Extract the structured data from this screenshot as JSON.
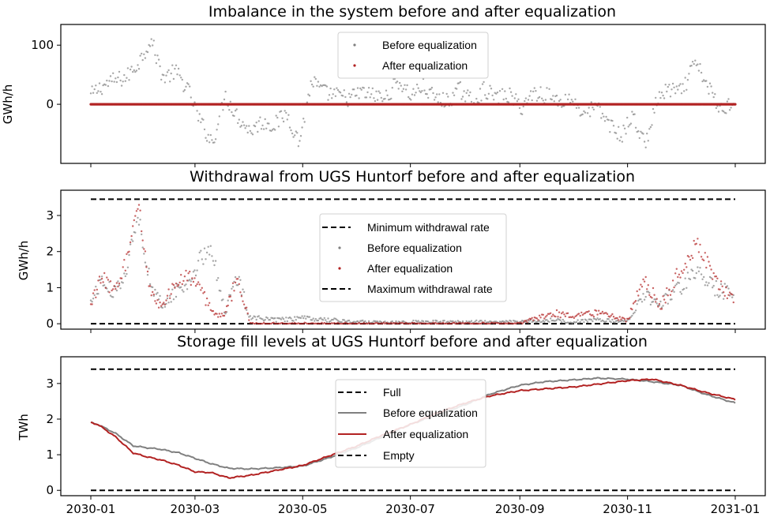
{
  "colors": {
    "before": "#808080",
    "after": "#b22222",
    "limit": "#000000"
  },
  "x_ticks": [
    "2030-01",
    "2030-03",
    "2030-05",
    "2030-07",
    "2030-09",
    "2030-11",
    "2031-01"
  ],
  "chart_data": [
    {
      "type": "scatter",
      "title": "Imbalance in the system before and after equalization",
      "ylabel": "GWh/h",
      "xlim": [
        "2030-01-01",
        "2031-01-01"
      ],
      "ylim": [
        -100,
        135
      ],
      "yticks": [
        {
          "value": 100,
          "label": "100"
        },
        {
          "value": 0,
          "label": "0"
        }
      ],
      "legend": {
        "position": "top-center",
        "entries": [
          "Before equalization",
          "After equalization"
        ]
      },
      "series": [
        {
          "name": "Before equalization",
          "style": "points",
          "color": "#808080",
          "x": [
            "2030-01-01",
            "2030-01-07",
            "2030-01-14",
            "2030-01-21",
            "2030-01-28",
            "2030-02-04",
            "2030-02-11",
            "2030-02-18",
            "2030-02-25",
            "2030-03-04",
            "2030-03-11",
            "2030-03-18",
            "2030-03-25",
            "2030-04-01",
            "2030-04-08",
            "2030-04-15",
            "2030-04-22",
            "2030-04-29",
            "2030-05-06",
            "2030-05-13",
            "2030-05-20",
            "2030-05-27",
            "2030-06-03",
            "2030-06-10",
            "2030-06-17",
            "2030-06-24",
            "2030-07-01",
            "2030-07-08",
            "2030-07-15",
            "2030-07-22",
            "2030-07-29",
            "2030-08-05",
            "2030-08-12",
            "2030-08-19",
            "2030-08-26",
            "2030-09-02",
            "2030-09-09",
            "2030-09-16",
            "2030-09-23",
            "2030-09-30",
            "2030-10-07",
            "2030-10-14",
            "2030-10-21",
            "2030-10-28",
            "2030-11-04",
            "2030-11-11",
            "2030-11-18",
            "2030-11-25",
            "2030-12-02",
            "2030-12-09",
            "2030-12-16",
            "2030-12-23",
            "2030-12-31"
          ],
          "y": [
            15,
            30,
            40,
            45,
            70,
            110,
            45,
            55,
            25,
            -30,
            -65,
            15,
            -20,
            -45,
            -30,
            -35,
            -15,
            -65,
            40,
            20,
            15,
            10,
            20,
            15,
            10,
            40,
            15,
            30,
            10,
            5,
            25,
            5,
            25,
            10,
            15,
            -5,
            20,
            15,
            5,
            10,
            -15,
            -5,
            -30,
            -55,
            -20,
            -70,
            10,
            25,
            20,
            70,
            35,
            -10,
            5
          ]
        },
        {
          "name": "After equalization",
          "style": "points",
          "color": "#b22222",
          "x": [
            "2030-01-01",
            "2031-01-01"
          ],
          "y": [
            0,
            0
          ]
        }
      ]
    },
    {
      "type": "scatter",
      "title": "Withdrawal from UGS Huntorf before and after equalization",
      "ylabel": "GWh/h",
      "xlim": [
        "2030-01-01",
        "2031-01-01"
      ],
      "ylim": [
        -0.15,
        3.7
      ],
      "yticks": [
        {
          "value": 0,
          "label": "0"
        },
        {
          "value": 1,
          "label": "1"
        },
        {
          "value": 2,
          "label": "2"
        },
        {
          "value": 3,
          "label": "3"
        }
      ],
      "legend": {
        "position": "center",
        "entries": [
          "Minimum withdrawal rate",
          "Before equalization",
          "After equalization",
          "Maximum withdrawal rate"
        ]
      },
      "series": [
        {
          "name": "Minimum withdrawal rate",
          "style": "dashed-line",
          "color": "#000000",
          "x": [
            "2030-01-01",
            "2031-01-01"
          ],
          "y": [
            0,
            0
          ]
        },
        {
          "name": "Before equalization",
          "style": "points",
          "color": "#808080",
          "x": [
            "2030-01-01",
            "2030-01-07",
            "2030-01-14",
            "2030-01-21",
            "2030-01-28",
            "2030-02-04",
            "2030-02-11",
            "2030-02-18",
            "2030-02-25",
            "2030-03-04",
            "2030-03-11",
            "2030-03-18",
            "2030-03-25",
            "2030-04-01",
            "2030-04-15",
            "2030-05-01",
            "2030-06-01",
            "2030-07-01",
            "2030-08-01",
            "2030-09-01",
            "2030-09-20",
            "2030-10-01",
            "2030-10-15",
            "2030-11-01",
            "2030-11-10",
            "2030-11-20",
            "2030-12-01",
            "2030-12-10",
            "2030-12-20",
            "2030-12-31"
          ],
          "y": [
            0.6,
            1.2,
            0.8,
            1.5,
            3.0,
            1.0,
            0.5,
            0.9,
            1.1,
            1.8,
            2.0,
            0.3,
            1.3,
            0.2,
            0.1,
            0.15,
            0.05,
            0.05,
            0.05,
            0.05,
            0.1,
            0.05,
            0.1,
            0.05,
            0.8,
            0.6,
            1.0,
            1.5,
            1.0,
            0.8
          ]
        },
        {
          "name": "After equalization",
          "style": "points",
          "color": "#b22222",
          "x": [
            "2030-01-01",
            "2030-01-07",
            "2030-01-14",
            "2030-01-21",
            "2030-01-28",
            "2030-02-04",
            "2030-02-11",
            "2030-02-18",
            "2030-02-25",
            "2030-03-04",
            "2030-03-11",
            "2030-03-18",
            "2030-03-25",
            "2030-04-01",
            "2030-04-15",
            "2030-05-01",
            "2030-06-01",
            "2030-07-01",
            "2030-08-01",
            "2030-09-01",
            "2030-09-20",
            "2030-10-01",
            "2030-10-15",
            "2030-11-01",
            "2030-11-10",
            "2030-11-20",
            "2030-12-01",
            "2030-12-10",
            "2030-12-20",
            "2030-12-31"
          ],
          "y": [
            0.5,
            1.3,
            0.9,
            1.7,
            3.3,
            0.8,
            0.5,
            1.1,
            1.3,
            1.0,
            0.3,
            0.2,
            1.4,
            0.0,
            0.0,
            0.0,
            0.0,
            0.0,
            0.0,
            0.0,
            0.3,
            0.2,
            0.3,
            0.1,
            1.2,
            0.5,
            1.5,
            2.2,
            1.3,
            0.6
          ]
        },
        {
          "name": "Maximum withdrawal rate",
          "style": "dashed-line",
          "color": "#000000",
          "x": [
            "2030-01-01",
            "2031-01-01"
          ],
          "y": [
            3.45,
            3.45
          ]
        }
      ]
    },
    {
      "type": "line",
      "title": "Storage fill levels at UGS Huntorf before and after equalization",
      "ylabel": "TWh",
      "xlim": [
        "2030-01-01",
        "2031-01-01"
      ],
      "ylim": [
        -0.15,
        3.75
      ],
      "yticks": [
        {
          "value": 0,
          "label": "0"
        },
        {
          "value": 1,
          "label": "1"
        },
        {
          "value": 2,
          "label": "2"
        },
        {
          "value": 3,
          "label": "3"
        }
      ],
      "legend": {
        "position": "center",
        "entries": [
          "Full",
          "Before equalization",
          "After equalization",
          "Empty"
        ]
      },
      "series": [
        {
          "name": "Full",
          "style": "dashed-line",
          "color": "#000000",
          "x": [
            "2030-01-01",
            "2031-01-01"
          ],
          "y": [
            3.4,
            3.4
          ]
        },
        {
          "name": "Before equalization",
          "style": "solid-line",
          "color": "#808080",
          "x": [
            "2030-01-01",
            "2030-01-05",
            "2030-01-15",
            "2030-01-25",
            "2030-02-01",
            "2030-02-10",
            "2030-02-20",
            "2030-03-01",
            "2030-03-10",
            "2030-03-20",
            "2030-04-01",
            "2030-04-15",
            "2030-05-01",
            "2030-05-15",
            "2030-06-01",
            "2030-06-15",
            "2030-07-01",
            "2030-07-15",
            "2030-08-01",
            "2030-08-15",
            "2030-09-01",
            "2030-09-15",
            "2030-10-01",
            "2030-10-15",
            "2030-11-01",
            "2030-11-15",
            "2030-12-01",
            "2030-12-15",
            "2031-01-01"
          ],
          "y": [
            1.9,
            1.85,
            1.6,
            1.25,
            1.2,
            1.15,
            1.05,
            0.9,
            0.75,
            0.62,
            0.6,
            0.63,
            0.68,
            0.9,
            1.2,
            1.5,
            1.85,
            2.1,
            2.4,
            2.7,
            2.95,
            3.05,
            3.1,
            3.15,
            3.12,
            3.05,
            2.95,
            2.7,
            2.45
          ]
        },
        {
          "name": "After equalization",
          "style": "solid-line",
          "color": "#b22222",
          "x": [
            "2030-01-01",
            "2030-01-05",
            "2030-01-15",
            "2030-01-25",
            "2030-02-01",
            "2030-02-10",
            "2030-02-20",
            "2030-03-01",
            "2030-03-10",
            "2030-03-20",
            "2030-04-01",
            "2030-04-15",
            "2030-05-01",
            "2030-05-15",
            "2030-06-01",
            "2030-06-15",
            "2030-07-01",
            "2030-07-15",
            "2030-08-01",
            "2030-08-15",
            "2030-09-01",
            "2030-09-15",
            "2030-10-01",
            "2030-10-15",
            "2030-11-01",
            "2030-11-15",
            "2030-12-01",
            "2030-12-15",
            "2031-01-01"
          ],
          "y": [
            1.9,
            1.85,
            1.5,
            1.05,
            0.95,
            0.85,
            0.7,
            0.52,
            0.5,
            0.35,
            0.42,
            0.55,
            0.7,
            0.95,
            1.25,
            1.55,
            1.85,
            2.15,
            2.45,
            2.65,
            2.8,
            2.85,
            2.9,
            2.98,
            3.08,
            3.12,
            2.95,
            2.75,
            2.55
          ]
        },
        {
          "name": "Empty",
          "style": "dashed-line",
          "color": "#000000",
          "x": [
            "2030-01-01",
            "2031-01-01"
          ],
          "y": [
            0,
            0
          ]
        }
      ]
    }
  ]
}
